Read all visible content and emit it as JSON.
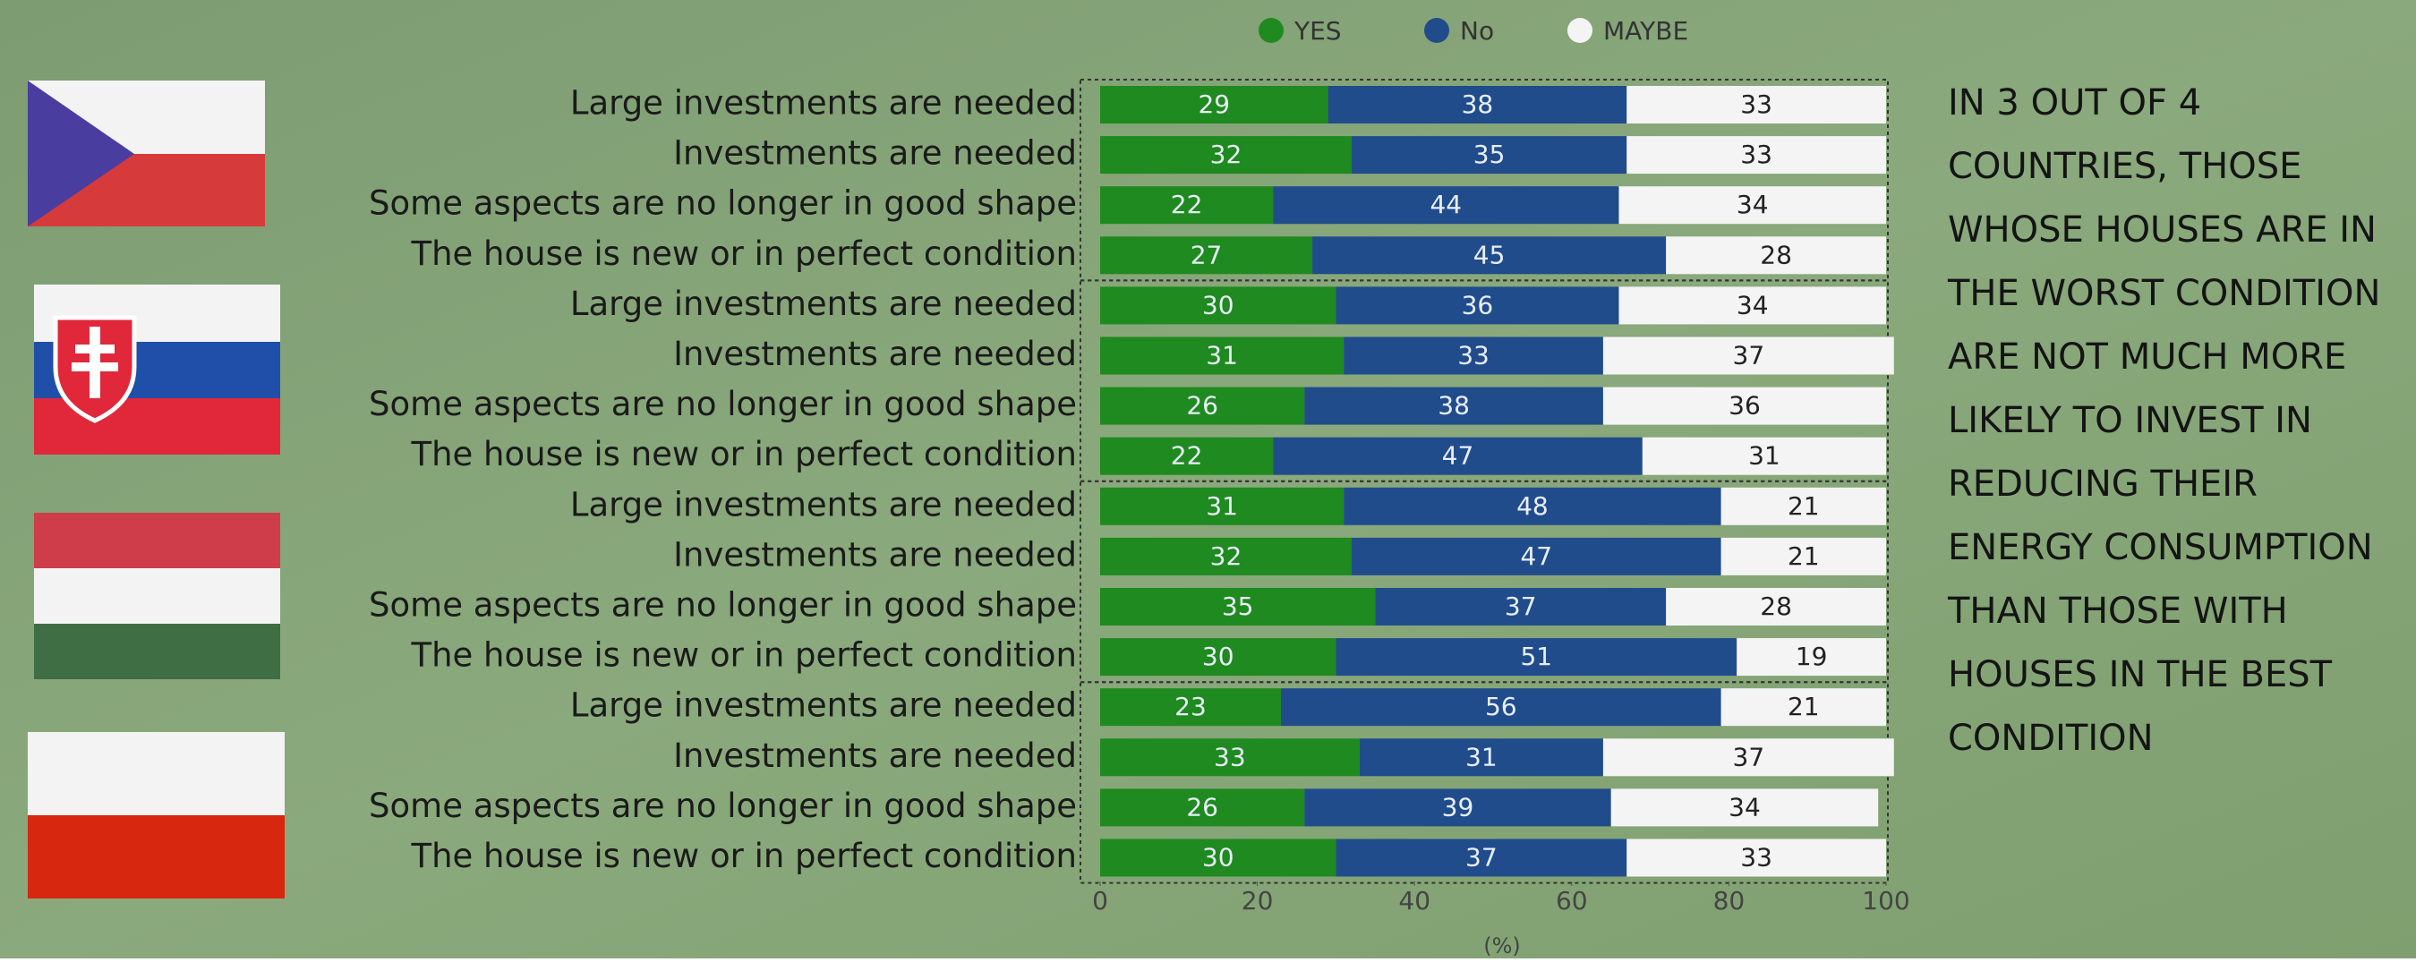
{
  "chart_data": {
    "type": "stacked-barh",
    "categories": [
      "Large investments are needed",
      "Investments are needed",
      "Some aspects are no longer in good shape",
      "The house is new or in perfect condition",
      "Large investments are needed",
      "Investments are needed",
      "Some aspects are no longer in good shape",
      "The house is new or in perfect condition",
      "Large investments are needed",
      "Investments are needed",
      "Some aspects are no longer in good shape",
      "The house is new or in perfect condition",
      "Large investments are needed",
      "Investments are needed",
      "Some aspects are no longer in good shape",
      "The house is new or in perfect condition"
    ],
    "series": [
      {
        "name": "YES",
        "color": "#1f8a1f",
        "values": [
          29,
          32,
          22,
          27,
          30,
          31,
          26,
          22,
          31,
          32,
          35,
          30,
          23,
          33,
          26,
          30
        ]
      },
      {
        "name": "No",
        "color": "#214c8c",
        "values": [
          38,
          35,
          44,
          45,
          36,
          33,
          38,
          47,
          48,
          47,
          37,
          51,
          56,
          31,
          39,
          37
        ]
      },
      {
        "name": "MAYBE",
        "color": "#f4f4f4",
        "values": [
          33,
          33,
          34,
          28,
          34,
          37,
          36,
          31,
          21,
          21,
          28,
          19,
          21,
          37,
          34,
          33
        ]
      }
    ],
    "xlim": [
      0,
      100
    ],
    "xticks": [
      0,
      20,
      40,
      60,
      80,
      100
    ],
    "xlabel": "(%)",
    "annotation": [
      "IN 3 OUT OF 4",
      "COUNTRIES, THOSE",
      "WHOSE HOUSES ARE IN",
      "THE WORST CONDITION",
      "ARE NOT MUCH MORE",
      "LIKELY TO INVEST IN",
      "REDUCING THEIR",
      "ENERGY CONSUMPTION",
      "THAN THOSE WITH",
      "HOUSES IN THE BEST",
      "CONDITION"
    ]
  }
}
